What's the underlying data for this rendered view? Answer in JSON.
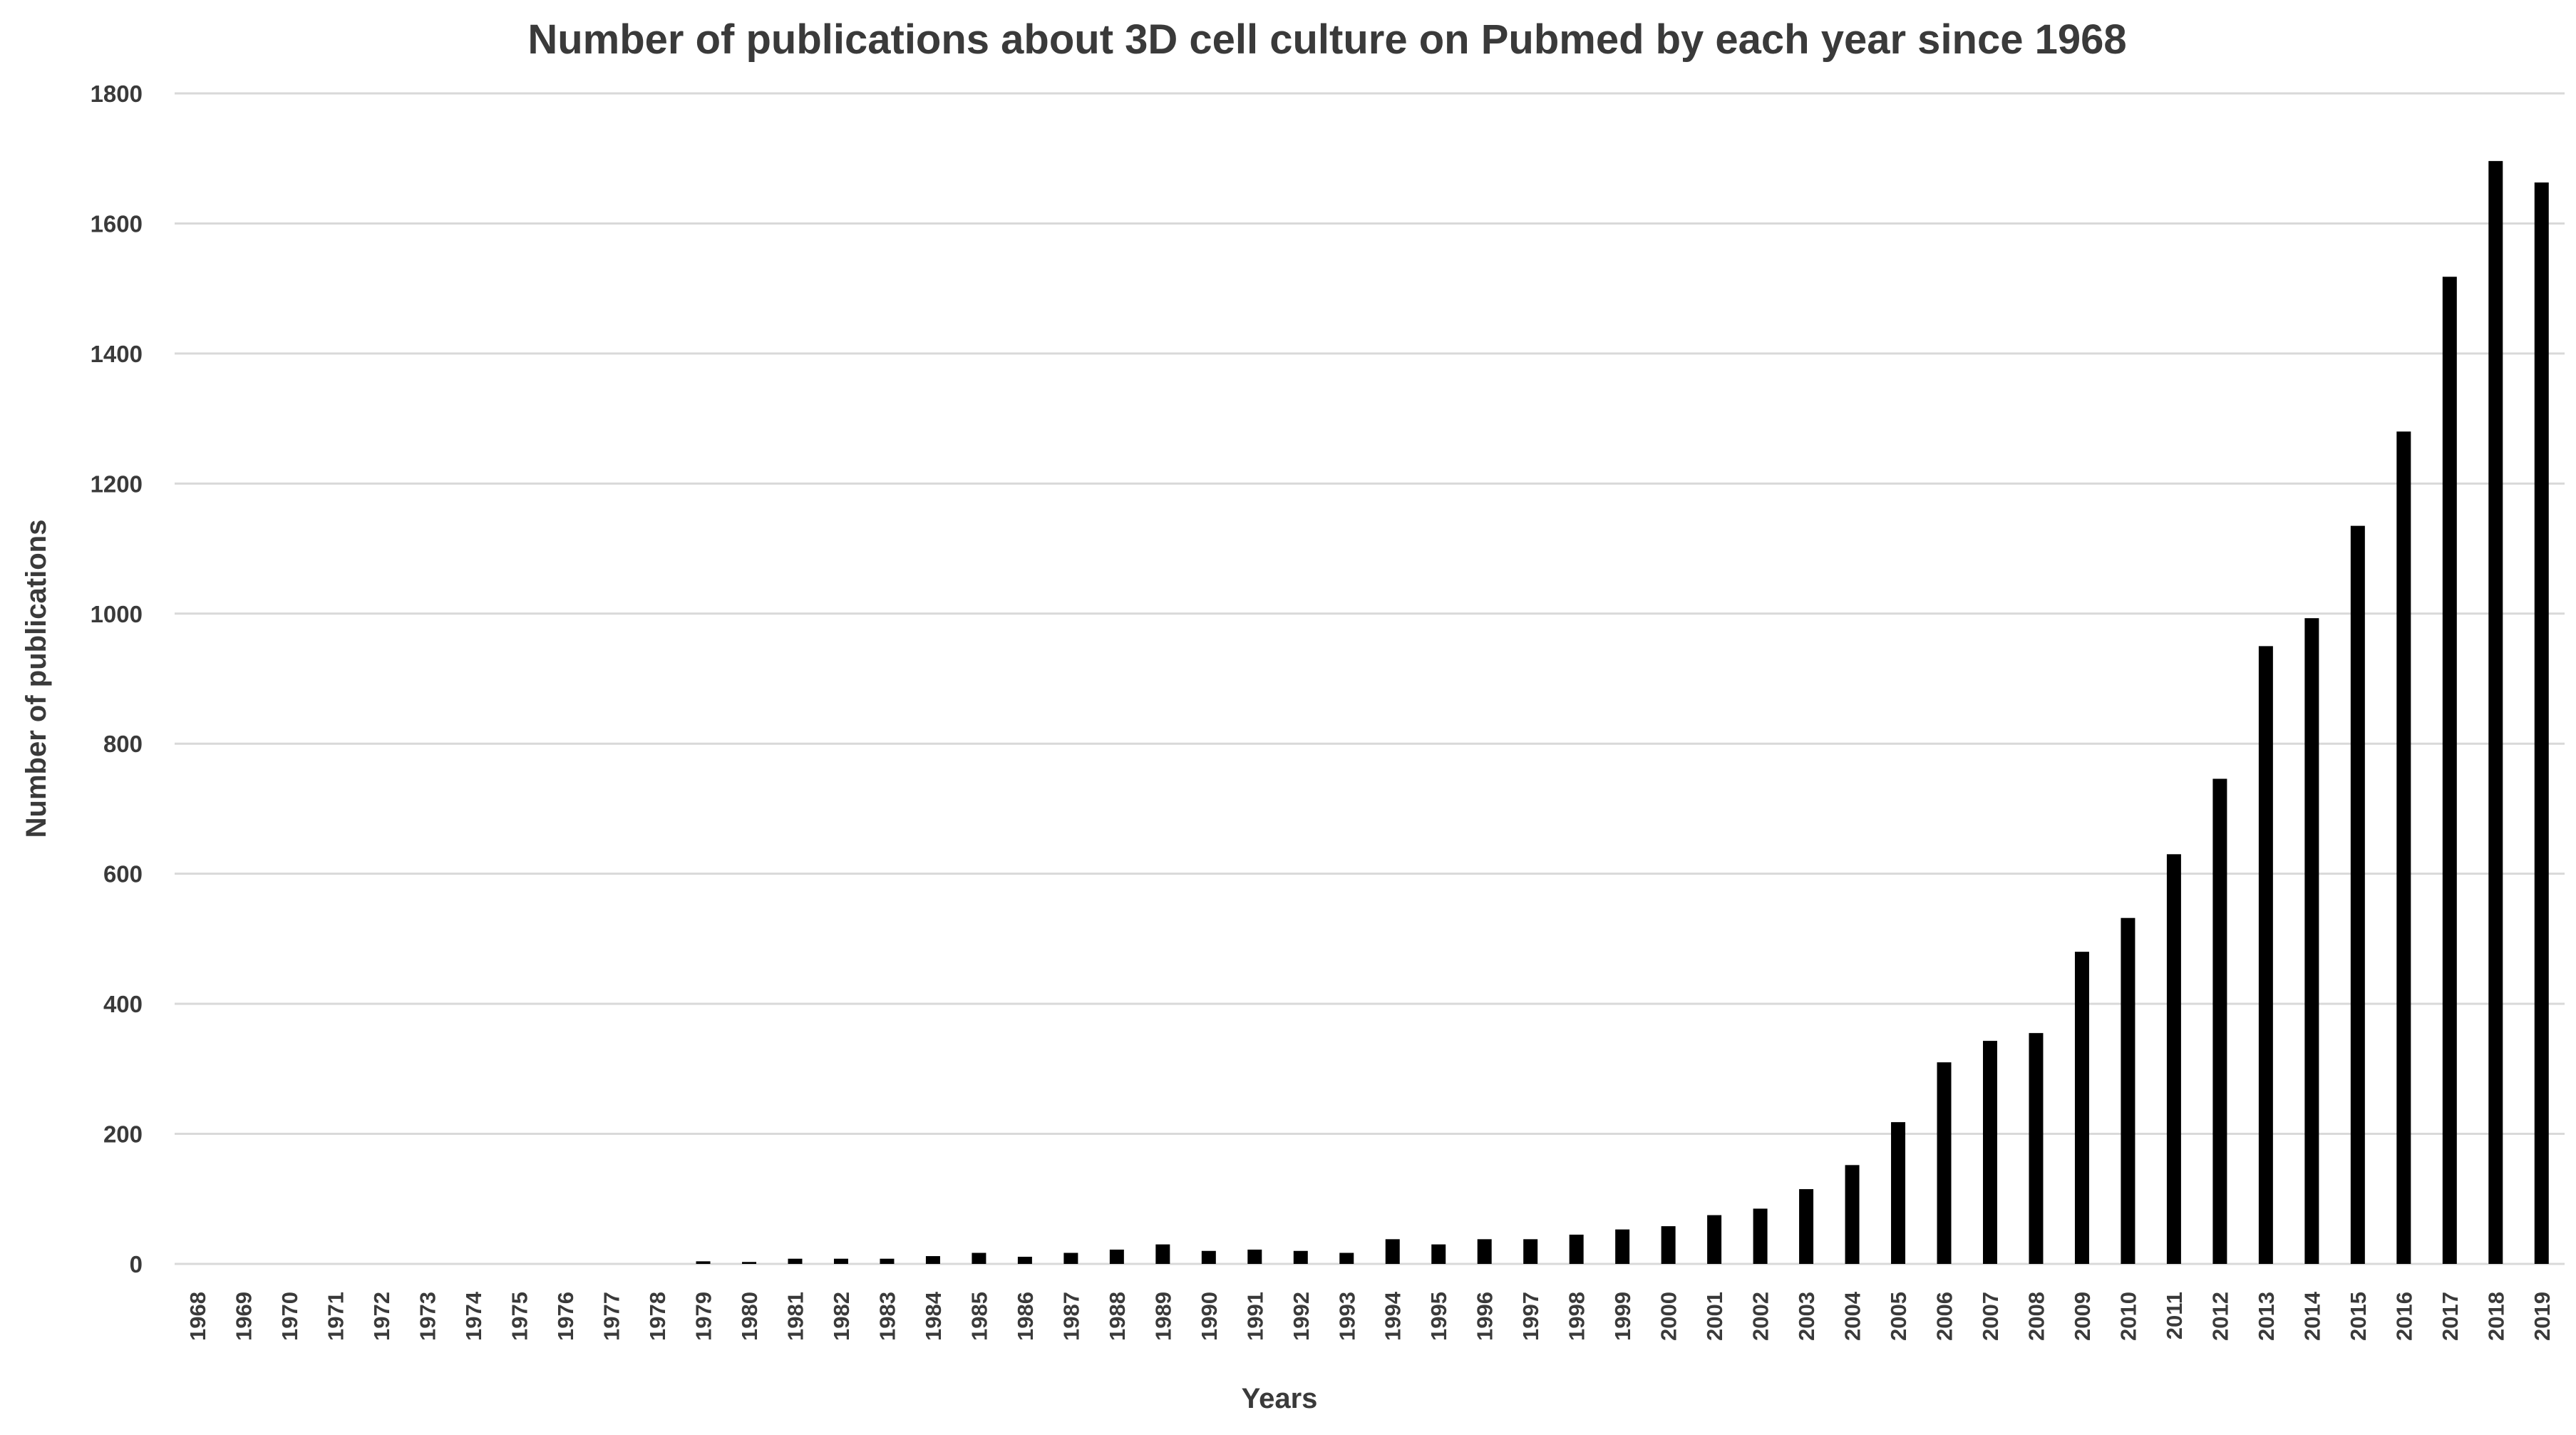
{
  "chart_data": {
    "type": "bar",
    "title": "Number of publications about 3D cell culture on Pubmed by each year since 1968",
    "xlabel": "Years",
    "ylabel": "Number of publications",
    "ylim": [
      0,
      1800
    ],
    "yticks": [
      0,
      200,
      400,
      600,
      800,
      1000,
      1200,
      1400,
      1600,
      1800
    ],
    "grid": true,
    "legend": "none",
    "bar_color": "#000000",
    "grid_color": "#d9d9d9",
    "categories": [
      "1968",
      "1969",
      "1970",
      "1971",
      "1972",
      "1973",
      "1974",
      "1975",
      "1976",
      "1977",
      "1978",
      "1979",
      "1980",
      "1981",
      "1982",
      "1983",
      "1984",
      "1985",
      "1986",
      "1987",
      "1988",
      "1989",
      "1990",
      "1991",
      "1992",
      "1993",
      "1994",
      "1995",
      "1996",
      "1997",
      "1998",
      "1999",
      "2000",
      "2001",
      "2002",
      "2003",
      "2004",
      "2005",
      "2006",
      "2007",
      "2008",
      "2009",
      "2010",
      "2011",
      "2012",
      "2013",
      "2014",
      "2015",
      "2016",
      "2017",
      "2018",
      "2019"
    ],
    "values": [
      0,
      0,
      0,
      0,
      0,
      0,
      0,
      0,
      0,
      0,
      0,
      4,
      3,
      8,
      8,
      8,
      12,
      17,
      11,
      17,
      22,
      30,
      20,
      22,
      20,
      17,
      38,
      30,
      38,
      38,
      45,
      53,
      58,
      75,
      85,
      115,
      152,
      218,
      310,
      343,
      355,
      480,
      532,
      630,
      746,
      950,
      993,
      1135,
      1280,
      1518,
      1696,
      1663
    ]
  }
}
